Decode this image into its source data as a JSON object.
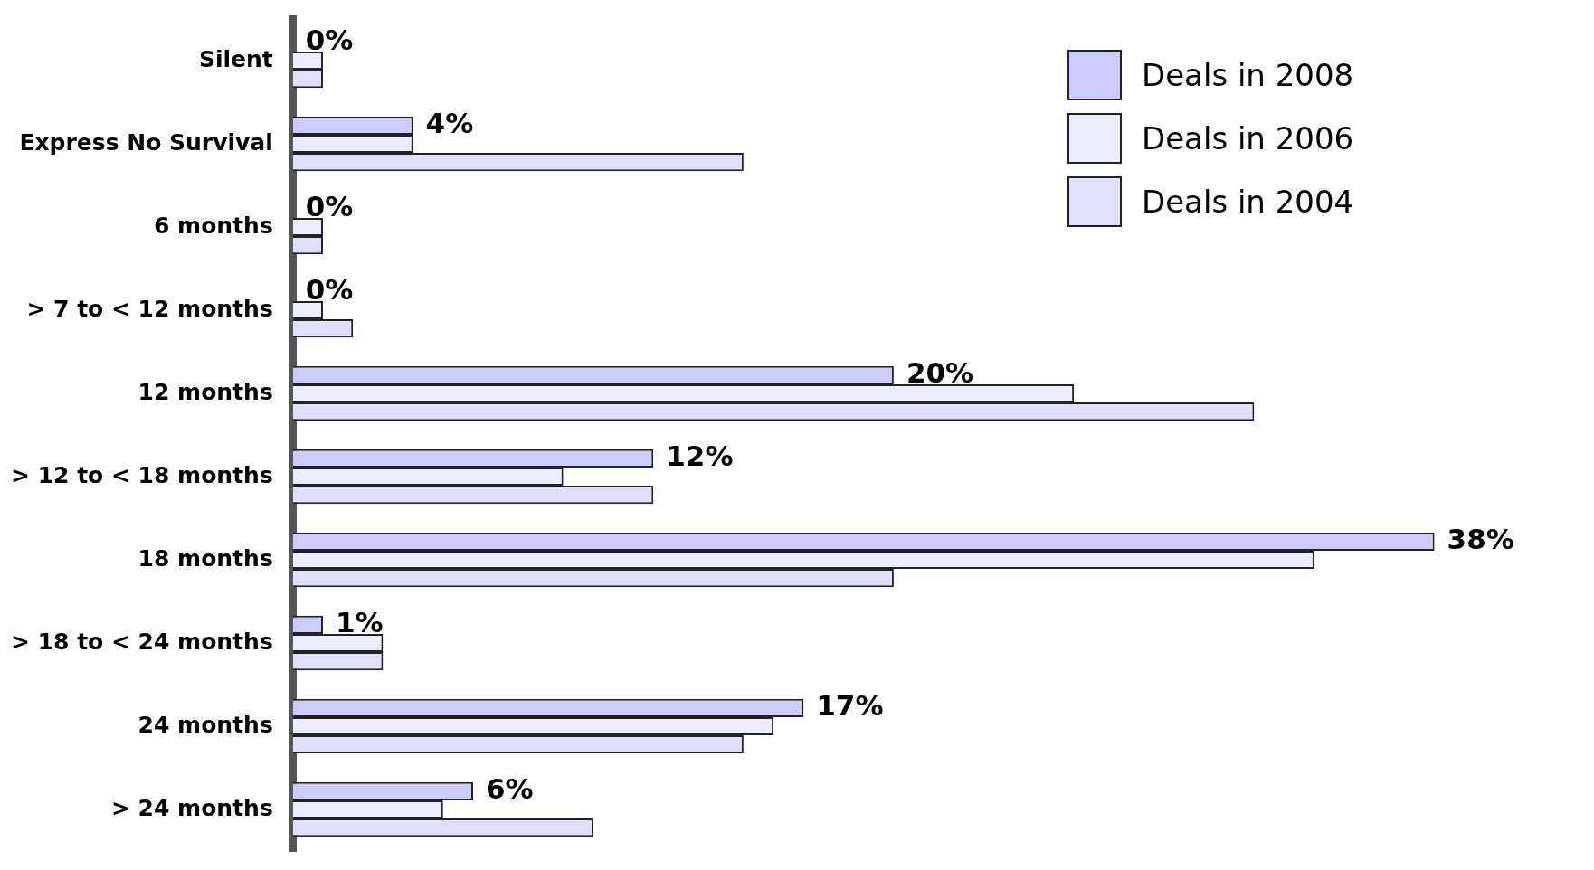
{
  "chart_data": {
    "type": "bar",
    "orientation": "horizontal",
    "categories": [
      "Silent",
      "Express No Survival",
      "6 months",
      "> 7 to < 12 months",
      "12 months",
      "> 12 to < 18 months",
      "18 months",
      "> 18 to < 24 months",
      "24 months",
      "> 24 months"
    ],
    "series": [
      {
        "name": "Deals in 2008",
        "color": "#ccccff",
        "values": [
          0,
          4,
          0,
          0,
          20,
          12,
          38,
          1,
          17,
          6
        ],
        "value_labels": [
          "0%",
          "4%",
          "0%",
          "0%",
          "20%",
          "12%",
          "38%",
          "1%",
          "17%",
          "6%"
        ]
      },
      {
        "name": "Deals in 2006",
        "color": "#ececff",
        "values": [
          1,
          4,
          1,
          1,
          26,
          9,
          34,
          3,
          16,
          5
        ]
      },
      {
        "name": "Deals in 2004",
        "color": "#e0e0fa",
        "values": [
          1,
          15,
          1,
          2,
          32,
          12,
          20,
          3,
          15,
          10
        ]
      }
    ],
    "tick_labels": "y",
    "legend": "top right"
  }
}
